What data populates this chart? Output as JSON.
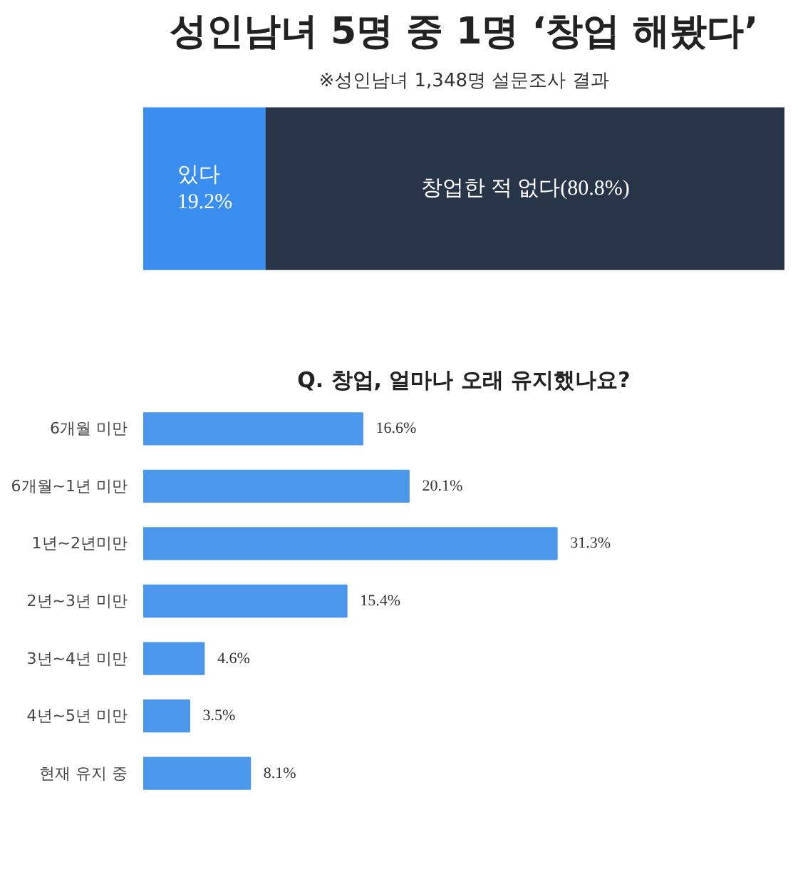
{
  "chart_data": [
    {
      "type": "bar",
      "title": "성인남녀 5명 중 1명 ‘창업 해봤다’",
      "subtitle": "※성인남녀 1,348명 설문조사 결과",
      "orientation": "horizontal",
      "stacked": true,
      "categories": [
        null
      ],
      "series": [
        {
          "color": "#3a8ef0",
          "values": [
            19.2
          ],
          "value_labels": [
            "있다\n19.2%"
          ]
        },
        {
          "color": "#283447",
          "values": [
            80.8
          ],
          "value_labels": [
            "창업한 적 없다(80.8%)"
          ]
        }
      ]
    },
    {
      "type": "bar",
      "title": "Q. 창업, 얼마나 오래 유지했나요?",
      "orientation": "horizontal",
      "categories": [
        "6개월 미만",
        "6개월~1년 미만",
        "1년~2년미만",
        "2년~3년 미만",
        "3년~4년 미만",
        "4년~5년 미만",
        "현재 유지 중"
      ],
      "series": [
        {
          "color": "#4a97ec",
          "values": [
            16.6,
            20.1,
            31.3,
            15.4,
            4.6,
            3.5,
            8.1
          ],
          "value_labels": [
            "16.6%",
            "20.1%",
            "31.3%",
            "15.4%",
            "4.6%",
            "3.5%",
            "8.1%"
          ]
        }
      ]
    }
  ]
}
